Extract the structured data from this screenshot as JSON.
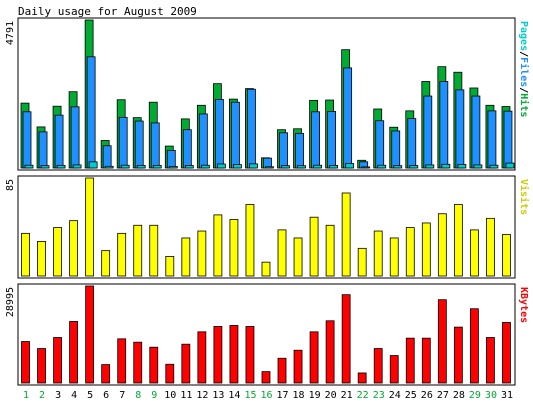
{
  "title": "Daily usage for August 2009",
  "colors": {
    "hits": "#00aa33",
    "files": "#1e90ff",
    "pages": "#00cccc",
    "visits": "#ffff00",
    "kbytes": "#ff0000",
    "weekend": "#00aa33",
    "weekday": "#000000"
  },
  "chart_data": [
    {
      "type": "bar",
      "panel": "top",
      "max_label": "4791",
      "ylim": [
        0,
        4791
      ],
      "side_labels": [
        {
          "text": "Pages",
          "color": "#00cccc"
        },
        {
          "text": "/",
          "color": "#000000"
        },
        {
          "text": "Files",
          "color": "#1e90ff"
        },
        {
          "text": "/",
          "color": "#000000"
        },
        {
          "text": "Hits",
          "color": "#00aa33"
        }
      ],
      "categories": [
        "1",
        "2",
        "3",
        "4",
        "5",
        "6",
        "7",
        "8",
        "9",
        "10",
        "11",
        "12",
        "13",
        "14",
        "15",
        "16",
        "17",
        "18",
        "19",
        "20",
        "21",
        "22",
        "23",
        "24",
        "25",
        "26",
        "27",
        "28",
        "29",
        "30",
        "31"
      ],
      "weekend_days": [
        "1",
        "2",
        "8",
        "9",
        "15",
        "16",
        "22",
        "23",
        "29",
        "30"
      ],
      "series": [
        {
          "name": "Hits",
          "values": [
            2100,
            1330,
            2000,
            2470,
            4791,
            890,
            2210,
            1630,
            2130,
            710,
            1590,
            2030,
            2730,
            2230,
            2570,
            330,
            1240,
            1270,
            2190,
            2200,
            3830,
            250,
            1910,
            1320,
            1850,
            2800,
            3280,
            3100,
            2590,
            2030,
            1990
          ]
        },
        {
          "name": "Files",
          "values": [
            1820,
            1170,
            1710,
            1980,
            3600,
            720,
            1640,
            1520,
            1460,
            570,
            1240,
            1750,
            2220,
            2130,
            2550,
            320,
            1140,
            1120,
            1820,
            1830,
            3240,
            200,
            1530,
            1200,
            1600,
            2330,
            2800,
            2530,
            2330,
            1850,
            1840
          ]
        },
        {
          "name": "Pages",
          "values": [
            90,
            75,
            85,
            100,
            200,
            55,
            90,
            85,
            85,
            50,
            80,
            90,
            130,
            110,
            135,
            40,
            75,
            75,
            90,
            85,
            145,
            35,
            90,
            75,
            80,
            100,
            120,
            115,
            100,
            90,
            160
          ]
        }
      ]
    },
    {
      "type": "bar",
      "panel": "middle",
      "max_label": "85",
      "ylim": [
        0,
        85
      ],
      "side_labels": [
        {
          "text": "Visits",
          "color": "#cccc00"
        }
      ],
      "categories": [
        "1",
        "2",
        "3",
        "4",
        "5",
        "6",
        "7",
        "8",
        "9",
        "10",
        "11",
        "12",
        "13",
        "14",
        "15",
        "16",
        "17",
        "18",
        "19",
        "20",
        "21",
        "22",
        "23",
        "24",
        "25",
        "26",
        "27",
        "28",
        "29",
        "30",
        "31"
      ],
      "series": [
        {
          "name": "Visits",
          "values": [
            37,
            30,
            42,
            48,
            85,
            22,
            37,
            44,
            44,
            17,
            33,
            39,
            53,
            49,
            62,
            12,
            40,
            33,
            51,
            44,
            72,
            24,
            39,
            33,
            42,
            46,
            54,
            62,
            40,
            50,
            36
          ]
        }
      ]
    },
    {
      "type": "bar",
      "panel": "bottom",
      "max_label": "28995",
      "ylim": [
        0,
        28995
      ],
      "side_labels": [
        {
          "text": "KBytes",
          "color": "#ff0000"
        }
      ],
      "categories": [
        "1",
        "2",
        "3",
        "4",
        "5",
        "6",
        "7",
        "8",
        "9",
        "10",
        "11",
        "12",
        "13",
        "14",
        "15",
        "16",
        "17",
        "18",
        "19",
        "20",
        "21",
        "22",
        "23",
        "24",
        "25",
        "26",
        "27",
        "28",
        "29",
        "30",
        "31"
      ],
      "series": [
        {
          "name": "KBytes",
          "values": [
            12400,
            10300,
            13600,
            18400,
            28995,
            5500,
            13200,
            12200,
            10700,
            5600,
            11600,
            15300,
            16900,
            17200,
            16900,
            3400,
            7400,
            9800,
            15300,
            18600,
            26400,
            3000,
            10300,
            8200,
            13400,
            13400,
            24900,
            16700,
            22200,
            13600,
            18100
          ]
        }
      ]
    }
  ]
}
